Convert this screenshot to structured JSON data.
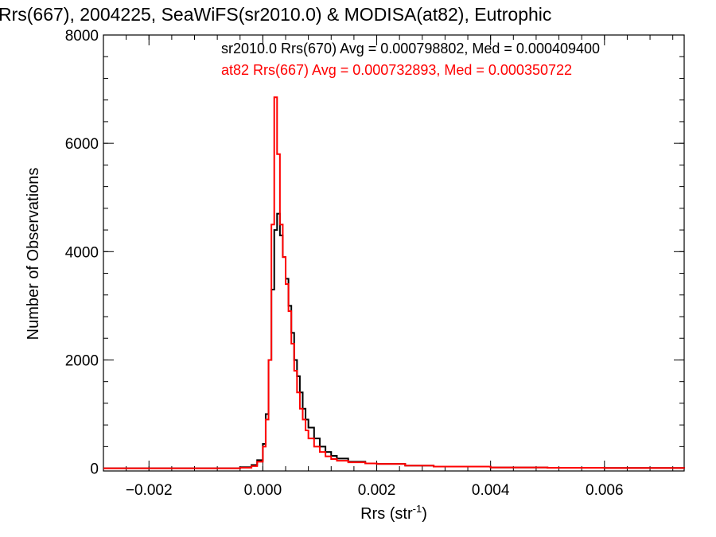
{
  "chart_data": {
    "type": "line",
    "title": "Rrs(667), 2004225, SeaWiFS(sr2010.0) & MODISA(at82), Eutrophic",
    "xlabel": "Rrs (str",
    "xlabel_sup": "-1",
    "xlabel_end": ")",
    "ylabel": "Number of Observations",
    "xlim": [
      -0.0028,
      0.0074
    ],
    "ylim": [
      -50,
      8000
    ],
    "xticks": [
      -0.002,
      0.0,
      0.002,
      0.004,
      0.006
    ],
    "xtick_labels": [
      "−0.002",
      "0.000",
      "0.002",
      "0.004",
      "0.006"
    ],
    "yticks": [
      0,
      2000,
      4000,
      6000,
      8000
    ],
    "ytick_labels": [
      "0",
      "2000",
      "4000",
      "6000",
      "8000"
    ],
    "grid": false,
    "legend_position": "top-right",
    "series": [
      {
        "name": "sr2010.0 Rrs(670) Avg = 0.000798802, Med = 0.000409400",
        "color": "#000000",
        "x": [
          -0.0028,
          -0.0008,
          -0.0004,
          -0.0002,
          -0.0001,
          0.0,
          5e-05,
          0.0001,
          0.00015,
          0.0002,
          0.00025,
          0.0003,
          0.00035,
          0.0004,
          0.00045,
          0.0005,
          0.00055,
          0.0006,
          0.00065,
          0.0007,
          0.00075,
          0.0008,
          0.0009,
          0.001,
          0.0011,
          0.0012,
          0.0013,
          0.0015,
          0.0018,
          0.002,
          0.0025,
          0.003,
          0.004,
          0.005,
          0.006,
          0.0074
        ],
        "y": [
          0,
          0,
          20,
          60,
          150,
          450,
          1000,
          2000,
          3300,
          4400,
          4700,
          4300,
          3900,
          3500,
          3000,
          2500,
          2000,
          1700,
          1400,
          1100,
          900,
          750,
          550,
          400,
          300,
          230,
          180,
          120,
          90,
          80,
          50,
          30,
          15,
          8,
          5,
          0
        ]
      },
      {
        "name": "at82 Rrs(667) Avg = 0.000732893, Med = 0.000350722",
        "color": "#ff0000",
        "x": [
          -0.0028,
          -0.0008,
          -0.0004,
          -0.0002,
          -0.0001,
          0.0,
          5e-05,
          0.0001,
          0.00015,
          0.0002,
          0.00025,
          0.0003,
          0.00035,
          0.0004,
          0.00045,
          0.0005,
          0.00055,
          0.0006,
          0.00065,
          0.0007,
          0.00075,
          0.0008,
          0.0009,
          0.001,
          0.0011,
          0.0012,
          0.0013,
          0.0015,
          0.0018,
          0.002,
          0.0025,
          0.003,
          0.004,
          0.005,
          0.006,
          0.0074
        ],
        "y": [
          0,
          0,
          10,
          40,
          120,
          400,
          900,
          2000,
          4500,
          6850,
          5800,
          4500,
          3900,
          3400,
          2900,
          2300,
          1800,
          1400,
          1100,
          900,
          700,
          550,
          400,
          300,
          220,
          170,
          140,
          110,
          90,
          80,
          50,
          30,
          15,
          8,
          5,
          0
        ]
      }
    ]
  }
}
